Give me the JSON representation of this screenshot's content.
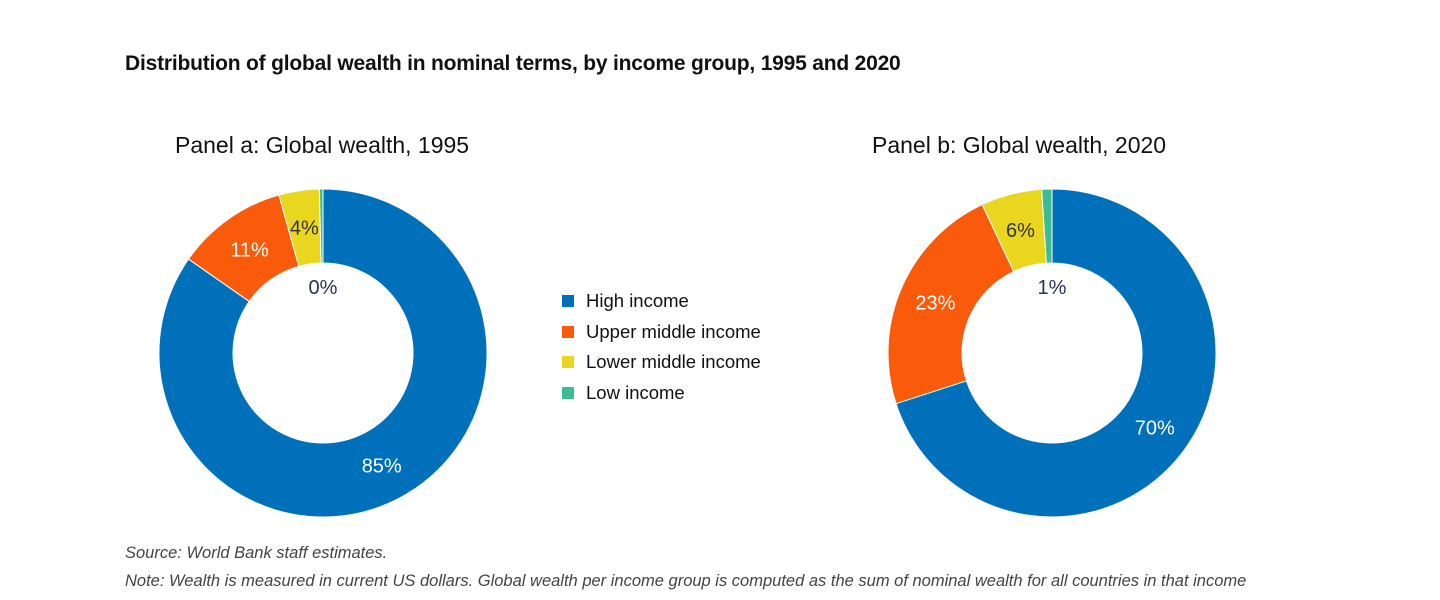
{
  "chart_data": {
    "title": "Distribution of global wealth in nominal terms, by income group, 1995 and 2020",
    "source": "Source: World Bank staff estimates.",
    "note": "Note: Wealth is measured in current US dollars. Global wealth per income group is computed as the sum of nominal wealth for all countries in that income",
    "legend": {
      "placement": "center",
      "entries": [
        "High income",
        "Upper middle income",
        "Lower middle income",
        "Low income"
      ]
    },
    "colors": [
      "#0070BA",
      "#F95B0B",
      "#E8D71E",
      "#3DBB92"
    ],
    "panels": [
      {
        "type": "pie",
        "title": "Panel a: Global wealth, 1995",
        "categories": [
          "High income",
          "Upper middle income",
          "Lower middle income",
          "Low income"
        ],
        "values": [
          85,
          11,
          4,
          0
        ],
        "labels": [
          "85%",
          "11%",
          "4%",
          "0%"
        ]
      },
      {
        "type": "pie",
        "title": "Panel b: Global wealth, 2020",
        "categories": [
          "High income",
          "Upper middle income",
          "Lower middle income",
          "Low income"
        ],
        "values": [
          70,
          23,
          6,
          1
        ],
        "labels": [
          "70%",
          "23%",
          "6%",
          "1%"
        ]
      }
    ]
  }
}
